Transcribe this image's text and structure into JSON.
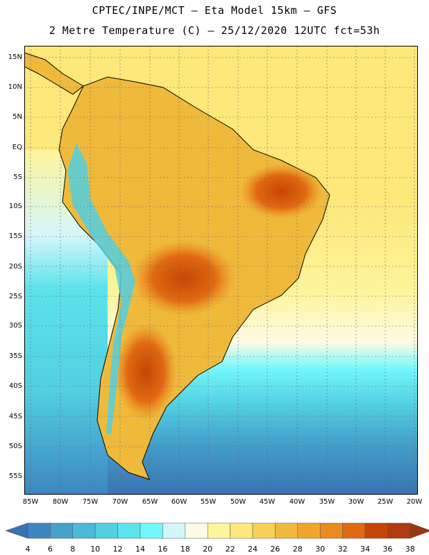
{
  "title_line1": "CPTEC/INPE/MCT –  Eta Model 15km – GFS",
  "title_line2": "2 Metre Temperature (C) – 25/12/2020 12UTC fct=53h",
  "lat_labels": [
    "15N",
    "10N",
    "5N",
    "EQ",
    "5S",
    "10S",
    "15S",
    "20S",
    "25S",
    "30S",
    "35S",
    "40S",
    "45S",
    "50S",
    "55S"
  ],
  "lon_labels": [
    "85W",
    "80W",
    "75W",
    "70W",
    "65W",
    "60W",
    "55W",
    "50W",
    "45W",
    "40W",
    "35W",
    "30W",
    "25W",
    "20W"
  ],
  "colorbar": {
    "labels": [
      "4",
      "6",
      "8",
      "10",
      "12",
      "14",
      "16",
      "18",
      "20",
      "22",
      "24",
      "26",
      "28",
      "30",
      "32",
      "34",
      "36",
      "38"
    ],
    "colors": [
      "#3a72b2",
      "#3d86c0",
      "#45a2cc",
      "#4bb9d8",
      "#52cfe1",
      "#5de3ec",
      "#73f7fa",
      "#d4f6fb",
      "#fdfbe6",
      "#fdf59c",
      "#fde87a",
      "#f7d058",
      "#efba3c",
      "#f0a62d",
      "#eb8a1f",
      "#e16912",
      "#c64605",
      "#b03c10",
      "#97370f"
    ]
  }
}
